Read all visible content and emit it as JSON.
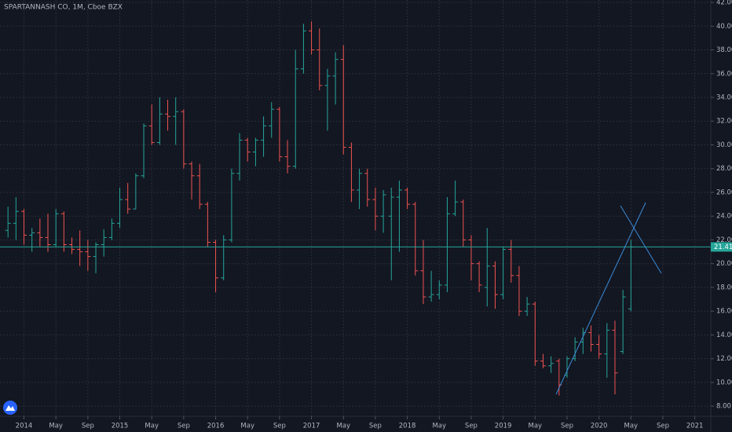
{
  "chart_data": {
    "type": "ohlc",
    "title": "SPARTANNASH CO, 1M, Cboe BZX",
    "colors": {
      "up": "#26a69a",
      "down": "#ef5350",
      "last": "#26a69a"
    },
    "grid": true,
    "xlim": [
      "2013-10",
      "2021-03"
    ],
    "xticks": [
      {
        "value": "2014-01",
        "label": "2014"
      },
      {
        "value": "2014-05",
        "label": "May"
      },
      {
        "value": "2014-09",
        "label": "Sep"
      },
      {
        "value": "2015-01",
        "label": "2015"
      },
      {
        "value": "2015-05",
        "label": "May"
      },
      {
        "value": "2015-09",
        "label": "Sep"
      },
      {
        "value": "2016-01",
        "label": "2016"
      },
      {
        "value": "2016-05",
        "label": "May"
      },
      {
        "value": "2016-09",
        "label": "Sep"
      },
      {
        "value": "2017-01",
        "label": "2017"
      },
      {
        "value": "2017-05",
        "label": "May"
      },
      {
        "value": "2017-09",
        "label": "Sep"
      },
      {
        "value": "2018-01",
        "label": "2018"
      },
      {
        "value": "2018-05",
        "label": "May"
      },
      {
        "value": "2018-09",
        "label": "Sep"
      },
      {
        "value": "2019-01",
        "label": "2019"
      },
      {
        "value": "2019-05",
        "label": "May"
      },
      {
        "value": "2019-09",
        "label": "Sep"
      },
      {
        "value": "2020-01",
        "label": "2020"
      },
      {
        "value": "2020-05",
        "label": "May"
      },
      {
        "value": "2020-09",
        "label": "Sep"
      },
      {
        "value": "2021-01",
        "label": "2021"
      }
    ],
    "ylim": [
      7.15,
      42.2
    ],
    "yticks": [
      {
        "value": 8,
        "label": "8.00"
      },
      {
        "value": 10,
        "label": "10.00"
      },
      {
        "value": 12,
        "label": "12.00"
      },
      {
        "value": 14,
        "label": "14.00"
      },
      {
        "value": 16,
        "label": "16.00"
      },
      {
        "value": 18,
        "label": "18.00"
      },
      {
        "value": 20,
        "label": "20.00"
      },
      {
        "value": 22,
        "label": "22.00"
      },
      {
        "value": 24,
        "label": "24.00"
      },
      {
        "value": 26,
        "label": "26.00"
      },
      {
        "value": 28,
        "label": "28.00"
      },
      {
        "value": 30,
        "label": "30.00"
      },
      {
        "value": 32,
        "label": "32.00"
      },
      {
        "value": 34,
        "label": "34.00"
      },
      {
        "value": 36,
        "label": "36.00"
      },
      {
        "value": 38,
        "label": "38.00"
      },
      {
        "value": 40,
        "label": "40.00"
      },
      {
        "value": 42,
        "label": "42.00"
      }
    ],
    "x": [
      "2013-11",
      "2013-12",
      "2014-01",
      "2014-02",
      "2014-03",
      "2014-04",
      "2014-05",
      "2014-06",
      "2014-07",
      "2014-08",
      "2014-09",
      "2014-10",
      "2014-11",
      "2014-12",
      "2015-01",
      "2015-02",
      "2015-03",
      "2015-04",
      "2015-05",
      "2015-06",
      "2015-07",
      "2015-08",
      "2015-09",
      "2015-10",
      "2015-11",
      "2015-12",
      "2016-01",
      "2016-02",
      "2016-03",
      "2016-04",
      "2016-05",
      "2016-06",
      "2016-07",
      "2016-08",
      "2016-09",
      "2016-10",
      "2016-11",
      "2016-12",
      "2017-01",
      "2017-02",
      "2017-03",
      "2017-04",
      "2017-05",
      "2017-06",
      "2017-07",
      "2017-08",
      "2017-09",
      "2017-10",
      "2017-11",
      "2017-12",
      "2018-01",
      "2018-02",
      "2018-03",
      "2018-04",
      "2018-05",
      "2018-06",
      "2018-07",
      "2018-08",
      "2018-09",
      "2018-10",
      "2018-11",
      "2018-12",
      "2019-01",
      "2019-02",
      "2019-03",
      "2019-04",
      "2019-05",
      "2019-06",
      "2019-07",
      "2019-08",
      "2019-09",
      "2019-10",
      "2019-11",
      "2019-12",
      "2020-01",
      "2020-02",
      "2020-03",
      "2020-04",
      "2020-05"
    ],
    "open": [
      22.8,
      23.4,
      24.4,
      22.4,
      22.6,
      22.2,
      21.6,
      24.2,
      21.6,
      21.2,
      21.0,
      20.6,
      21.6,
      22.2,
      23.4,
      25.4,
      24.6,
      27.4,
      31.6,
      30.2,
      32.6,
      32.4,
      32.8,
      28.4,
      27.4,
      25.0,
      21.8,
      18.8,
      22.0,
      27.6,
      30.4,
      29.4,
      30.4,
      31.6,
      33.0,
      29.0,
      28.2,
      36.4,
      39.6,
      38.0,
      35.0,
      35.8,
      37.2,
      29.8,
      26.2,
      27.6,
      25.4,
      24.0,
      24.0,
      25.6,
      26.2,
      25.0,
      19.4,
      17.2,
      17.4,
      18.2,
      24.2,
      25.2,
      22.0,
      20.0,
      18.0,
      19.8,
      17.4,
      21.2,
      19.0,
      16.0,
      16.6,
      11.8,
      11.4,
      11.8,
      10.6,
      12.0,
      13.4,
      14.2,
      13.2,
      12.4,
      14.4,
      12.6,
      16.2
    ],
    "high": [
      24.8,
      25.6,
      24.6,
      23.0,
      23.8,
      24.2,
      24.6,
      24.4,
      22.2,
      22.8,
      22.0,
      21.8,
      22.9,
      23.8,
      26.4,
      26.8,
      27.6,
      31.8,
      33.4,
      34.0,
      33.8,
      34.0,
      33.0,
      28.6,
      28.4,
      25.2,
      22.0,
      22.4,
      28.0,
      31.0,
      30.6,
      30.6,
      32.4,
      33.6,
      33.2,
      30.4,
      38.0,
      40.2,
      40.4,
      39.8,
      36.4,
      37.8,
      38.4,
      30.2,
      28.0,
      28.0,
      26.4,
      26.2,
      26.4,
      27.0,
      26.4,
      25.2,
      22.0,
      19.4,
      18.6,
      25.6,
      27.0,
      25.4,
      22.4,
      20.2,
      23.0,
      20.2,
      21.4,
      22.0,
      19.8,
      17.2,
      16.8,
      12.4,
      12.2,
      12.0,
      12.2,
      13.8,
      14.6,
      14.8,
      14.0,
      15.0,
      15.2,
      17.8,
      22.0
    ],
    "low": [
      22.2,
      22.0,
      21.6,
      21.0,
      21.4,
      21.0,
      21.4,
      21.0,
      20.8,
      19.8,
      19.4,
      19.2,
      20.6,
      22.0,
      23.0,
      24.2,
      24.6,
      27.2,
      30.0,
      30.0,
      31.2,
      30.0,
      28.0,
      25.4,
      24.6,
      21.4,
      17.6,
      18.6,
      21.8,
      27.0,
      28.6,
      28.2,
      29.0,
      30.6,
      28.6,
      27.6,
      28.0,
      36.0,
      37.6,
      34.6,
      31.2,
      33.4,
      29.2,
      25.2,
      24.6,
      24.8,
      22.8,
      22.6,
      18.6,
      21.0,
      24.6,
      19.0,
      16.6,
      16.8,
      17.0,
      17.6,
      24.0,
      21.4,
      18.6,
      17.6,
      16.4,
      16.2,
      17.0,
      18.4,
      15.6,
      15.6,
      11.4,
      11.2,
      10.8,
      8.9,
      10.4,
      11.8,
      12.4,
      12.6,
      12.0,
      10.4,
      9.0,
      12.4,
      16.0
    ],
    "close": [
      23.4,
      24.4,
      22.4,
      22.6,
      22.2,
      21.6,
      24.2,
      21.6,
      21.2,
      21.0,
      20.6,
      21.6,
      22.2,
      23.4,
      25.4,
      24.6,
      27.4,
      31.6,
      30.2,
      32.6,
      32.4,
      32.8,
      28.4,
      27.4,
      25.0,
      21.8,
      18.8,
      22.0,
      27.6,
      30.4,
      29.4,
      30.4,
      31.6,
      33.0,
      29.0,
      28.2,
      36.4,
      39.6,
      38.0,
      35.0,
      35.8,
      37.2,
      29.8,
      26.2,
      27.6,
      25.4,
      24.0,
      25.8,
      25.6,
      26.2,
      25.0,
      19.4,
      17.2,
      17.4,
      18.2,
      24.2,
      25.2,
      22.0,
      20.0,
      18.2,
      19.8,
      17.4,
      21.2,
      19.0,
      16.0,
      16.6,
      11.8,
      11.4,
      11.6,
      9.8,
      12.0,
      13.4,
      14.2,
      13.2,
      12.4,
      14.4,
      10.8,
      17.2,
      21.41
    ]
  }
}
